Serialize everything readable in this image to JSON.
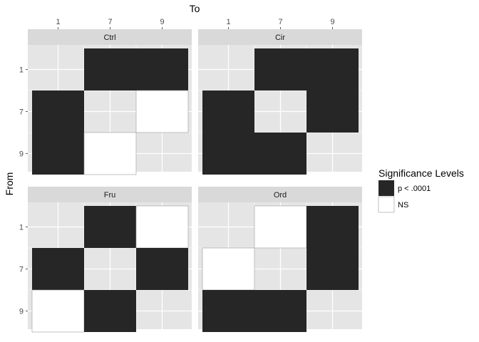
{
  "chart_data": {
    "type": "heatmap",
    "x_title": "To",
    "y_title": "From",
    "x_categories": [
      "1",
      "7",
      "9"
    ],
    "y_categories": [
      "1",
      "7",
      "9"
    ],
    "levels": [
      {
        "name": "p < .0001",
        "color": "#262626"
      },
      {
        "name": "NS",
        "color": "#ffffff"
      }
    ],
    "legend": {
      "title": "Significance Levels",
      "position": "right"
    },
    "panel_background": "#e5e5e5",
    "grid_color": "#ffffff",
    "strip_background": "#d9d9d9",
    "facets": [
      {
        "title": "Ctrl",
        "cells": [
          {
            "from": "1",
            "to": "7",
            "level": "p < .0001"
          },
          {
            "from": "1",
            "to": "9",
            "level": "p < .0001"
          },
          {
            "from": "7",
            "to": "1",
            "level": "p < .0001"
          },
          {
            "from": "7",
            "to": "9",
            "level": "NS"
          },
          {
            "from": "9",
            "to": "1",
            "level": "p < .0001"
          },
          {
            "from": "9",
            "to": "7",
            "level": "NS"
          }
        ]
      },
      {
        "title": "Cir",
        "cells": [
          {
            "from": "1",
            "to": "7",
            "level": "p < .0001"
          },
          {
            "from": "1",
            "to": "9",
            "level": "p < .0001"
          },
          {
            "from": "7",
            "to": "1",
            "level": "p < .0001"
          },
          {
            "from": "7",
            "to": "9",
            "level": "p < .0001"
          },
          {
            "from": "9",
            "to": "1",
            "level": "p < .0001"
          },
          {
            "from": "9",
            "to": "7",
            "level": "p < .0001"
          }
        ]
      },
      {
        "title": "Fru",
        "cells": [
          {
            "from": "1",
            "to": "7",
            "level": "p < .0001"
          },
          {
            "from": "1",
            "to": "9",
            "level": "NS"
          },
          {
            "from": "7",
            "to": "1",
            "level": "p < .0001"
          },
          {
            "from": "7",
            "to": "9",
            "level": "p < .0001"
          },
          {
            "from": "9",
            "to": "1",
            "level": "NS"
          },
          {
            "from": "9",
            "to": "7",
            "level": "p < .0001"
          }
        ]
      },
      {
        "title": "Ord",
        "cells": [
          {
            "from": "1",
            "to": "7",
            "level": "NS"
          },
          {
            "from": "1",
            "to": "9",
            "level": "p < .0001"
          },
          {
            "from": "7",
            "to": "1",
            "level": "NS"
          },
          {
            "from": "7",
            "to": "9",
            "level": "p < .0001"
          },
          {
            "from": "9",
            "to": "1",
            "level": "p < .0001"
          },
          {
            "from": "9",
            "to": "7",
            "level": "p < .0001"
          }
        ]
      }
    ]
  }
}
